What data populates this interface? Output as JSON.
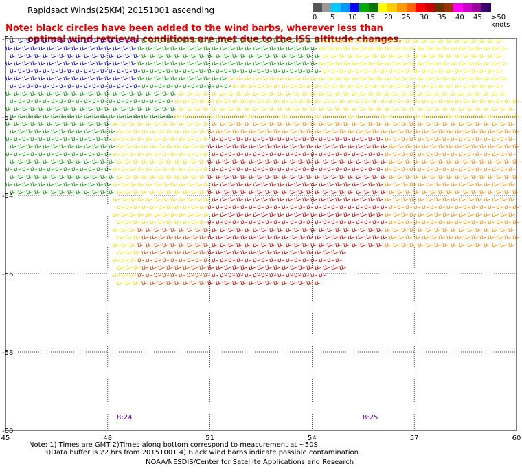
{
  "title": "Rapidsact Winds(25KM) 20151001 ascending",
  "note_line1": "Note: black circles have been added to the wind barbs, wherever less than",
  "note_line2": "optimal wind retrieval conditions are met due to the ISS altitude changes.",
  "colorbar": {
    "colors": [
      "#555555",
      "#999999",
      "#00c8ff",
      "#0096ff",
      "#0000ff",
      "#00aa00",
      "#007700",
      "#ffff00",
      "#ffcc00",
      "#ff9900",
      "#ff6600",
      "#ff0000",
      "#cc0000",
      "#663300",
      "#993300",
      "#ff00ff",
      "#cc00cc",
      "#990099",
      "#330066"
    ],
    "labels": [
      "0",
      "5",
      "10",
      "15",
      "20",
      "25",
      "30",
      "35",
      "40",
      "45",
      ">50 knots"
    ]
  },
  "map": {
    "lon_ticks": [
      "45",
      "48",
      "51",
      "54",
      "57",
      "60"
    ],
    "lat_ticks": [
      "-50",
      "-52",
      "-54",
      "-56",
      "-58",
      "-60"
    ],
    "lon_range": [
      45,
      60
    ],
    "lat_range": [
      -60,
      -50
    ],
    "grid": true,
    "time_labels": [
      "8:24",
      "8:25"
    ]
  },
  "footer": {
    "note1": "Note: 1) Times are GMT 2)Times along bottom correspond to measurement at ~50S",
    "note2": "3)Data buffer is 22 hrs from 20151001 4) Black wind barbs indicate possible contamination",
    "credit": "NOAA/NESDIS/Center for Satellite Applications and Research"
  }
}
